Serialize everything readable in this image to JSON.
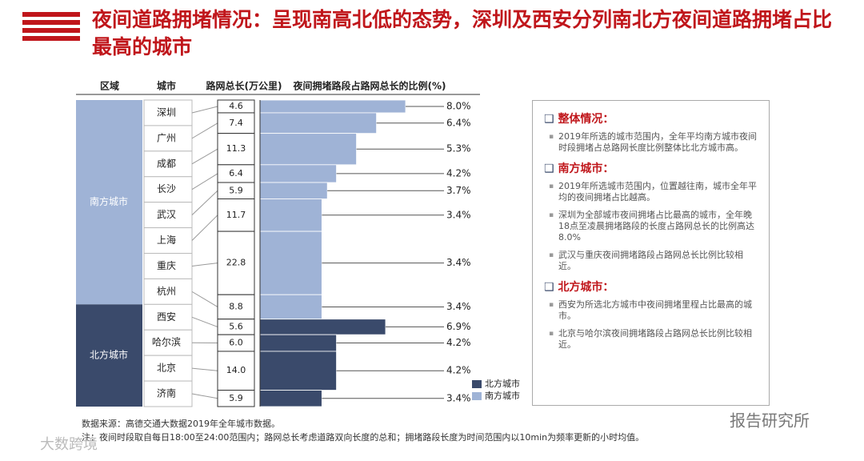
{
  "title": "夜间道路拥堵情况：呈现南高北低的态势，深圳及西安分列南北方夜间道路拥堵占比最高的城市",
  "chart_data": {
    "type": "bar",
    "headers": [
      "区域",
      "城市",
      "路网总长(万公里)",
      "夜间拥堵路段占路网总长的比例(%)"
    ],
    "series": [
      {
        "name": "南方城市",
        "color": "#9fb3d6",
        "categories": [
          "深圳",
          "广州",
          "成都",
          "长沙",
          "武汉",
          "上海",
          "重庆",
          "杭州"
        ],
        "lengths": [
          4.6,
          7.4,
          11.3,
          6.4,
          5.9,
          11.7,
          22.8,
          8.8
        ],
        "length_labels": [
          "4.6",
          "7.4",
          "11.3",
          "6.4",
          "5.9",
          "11.7",
          "22.8",
          "8.8"
        ],
        "values": [
          8.0,
          6.4,
          5.3,
          4.2,
          3.7,
          3.4,
          3.4,
          3.4
        ],
        "value_labels": [
          "8.0%",
          "6.4%",
          "5.3%",
          "4.2%",
          "3.7%",
          "3.4%",
          "3.4%",
          "3.4%"
        ]
      },
      {
        "name": "北方城市",
        "color": "#3a4a6b",
        "categories": [
          "西安",
          "哈尔滨",
          "北京",
          "济南"
        ],
        "lengths": [
          5.6,
          6.0,
          14.0,
          5.9
        ],
        "length_labels": [
          "5.6",
          "6.0",
          "14.0",
          "5.9"
        ],
        "values": [
          6.9,
          4.2,
          4.2,
          3.4
        ],
        "value_labels": [
          "6.9%",
          "4.2%",
          "4.2%",
          "3.4%"
        ]
      }
    ]
  },
  "panel": {
    "sections": [
      {
        "heading": "整体情况：",
        "items": [
          "2019年所选的城市范围内，全年平均南方城市夜间时段拥堵占总路网长度比例整体比北方城市高。"
        ]
      },
      {
        "heading": "南方城市：",
        "items": [
          "2019年所选城市范围内，位置越往南，城市全年平均的夜间拥堵占比越高。",
          "深圳为全部城市夜间拥堵占比最高的城市，全年晚18点至凌晨拥堵路段的长度占路网总长的比例高达8.0%",
          "武汉与重庆夜间拥堵路段占路网总长比例比较相近。"
        ]
      },
      {
        "heading": "北方城市：",
        "items": [
          "西安为所选北方城市中夜间拥堵里程占比最高的城市。",
          "北京与哈尔滨夜间拥堵路段占路网总长比例比较相近。"
        ]
      }
    ]
  },
  "notes": [
    "数据来源：高德交通大数据2019年全年城市数据。",
    "注：夜间时段取自每日18:00至24:00范围内；路网总长考虑道路双向长度的总和；拥堵路段长度为时间范围内以10min为频率更新的小时均值。"
  ],
  "watermarks": [
    "报告研究所",
    "大数跨境"
  ]
}
